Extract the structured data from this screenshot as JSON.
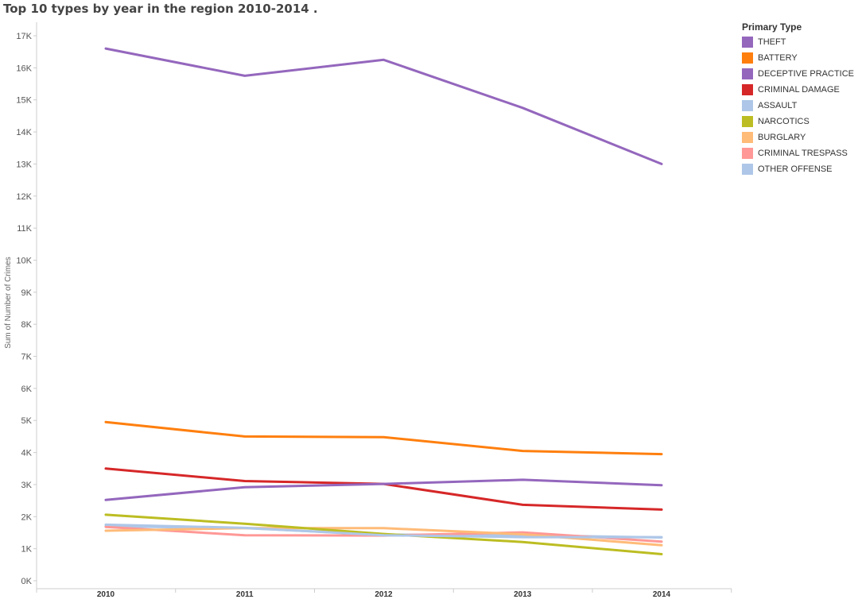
{
  "title": "Top 10 types by year in the region 2010-2014 .",
  "legend": {
    "title": "Primary Type"
  },
  "chart_data": {
    "type": "line",
    "title": "Top 10 types by year in the region 2010-2014 .",
    "xlabel": "",
    "ylabel": "Sum of Number of Crimes",
    "x": [
      "2010",
      "2011",
      "2012",
      "2013",
      "2014"
    ],
    "ylim": [
      0,
      17000
    ],
    "yticks": [
      0,
      1000,
      2000,
      3000,
      4000,
      5000,
      6000,
      7000,
      8000,
      9000,
      10000,
      11000,
      12000,
      13000,
      14000,
      15000,
      16000,
      17000
    ],
    "ytick_labels": [
      "0K",
      "1K",
      "2K",
      "3K",
      "4K",
      "5K",
      "6K",
      "7K",
      "8K",
      "9K",
      "10K",
      "11K",
      "12K",
      "13K",
      "14K",
      "15K",
      "16K",
      "17K"
    ],
    "grid": false,
    "legend_position": "right",
    "series": [
      {
        "name": "THEFT",
        "color": "#9467BD",
        "values": [
          16600,
          15750,
          16250,
          14750,
          13000
        ]
      },
      {
        "name": "BATTERY",
        "color": "#FF7F0E",
        "values": [
          4950,
          4500,
          4480,
          4050,
          3950
        ]
      },
      {
        "name": "DECEPTIVE PRACTICE",
        "color": "#9467BD",
        "values": [
          2520,
          2920,
          3020,
          3150,
          2980
        ]
      },
      {
        "name": "CRIMINAL DAMAGE",
        "color": "#D62728",
        "values": [
          3500,
          3110,
          3020,
          2370,
          2220
        ]
      },
      {
        "name": "ASSAULT",
        "color": "#AEC7E8",
        "values": [
          1750,
          1650,
          1420,
          1360,
          1360
        ]
      },
      {
        "name": "NARCOTICS",
        "color": "#BCBD22",
        "values": [
          2060,
          1780,
          1460,
          1210,
          830
        ]
      },
      {
        "name": "BURGLARY",
        "color": "#FFBB78",
        "values": [
          1560,
          1640,
          1640,
          1450,
          1110
        ]
      },
      {
        "name": "CRIMINAL TRESPASS",
        "color": "#FF9896",
        "values": [
          1680,
          1420,
          1410,
          1510,
          1220
        ]
      },
      {
        "name": "OTHER OFFENSE",
        "color": "#AEC7E8",
        "values": [
          1700,
          1640,
          1440,
          1420,
          1350
        ]
      }
    ]
  }
}
